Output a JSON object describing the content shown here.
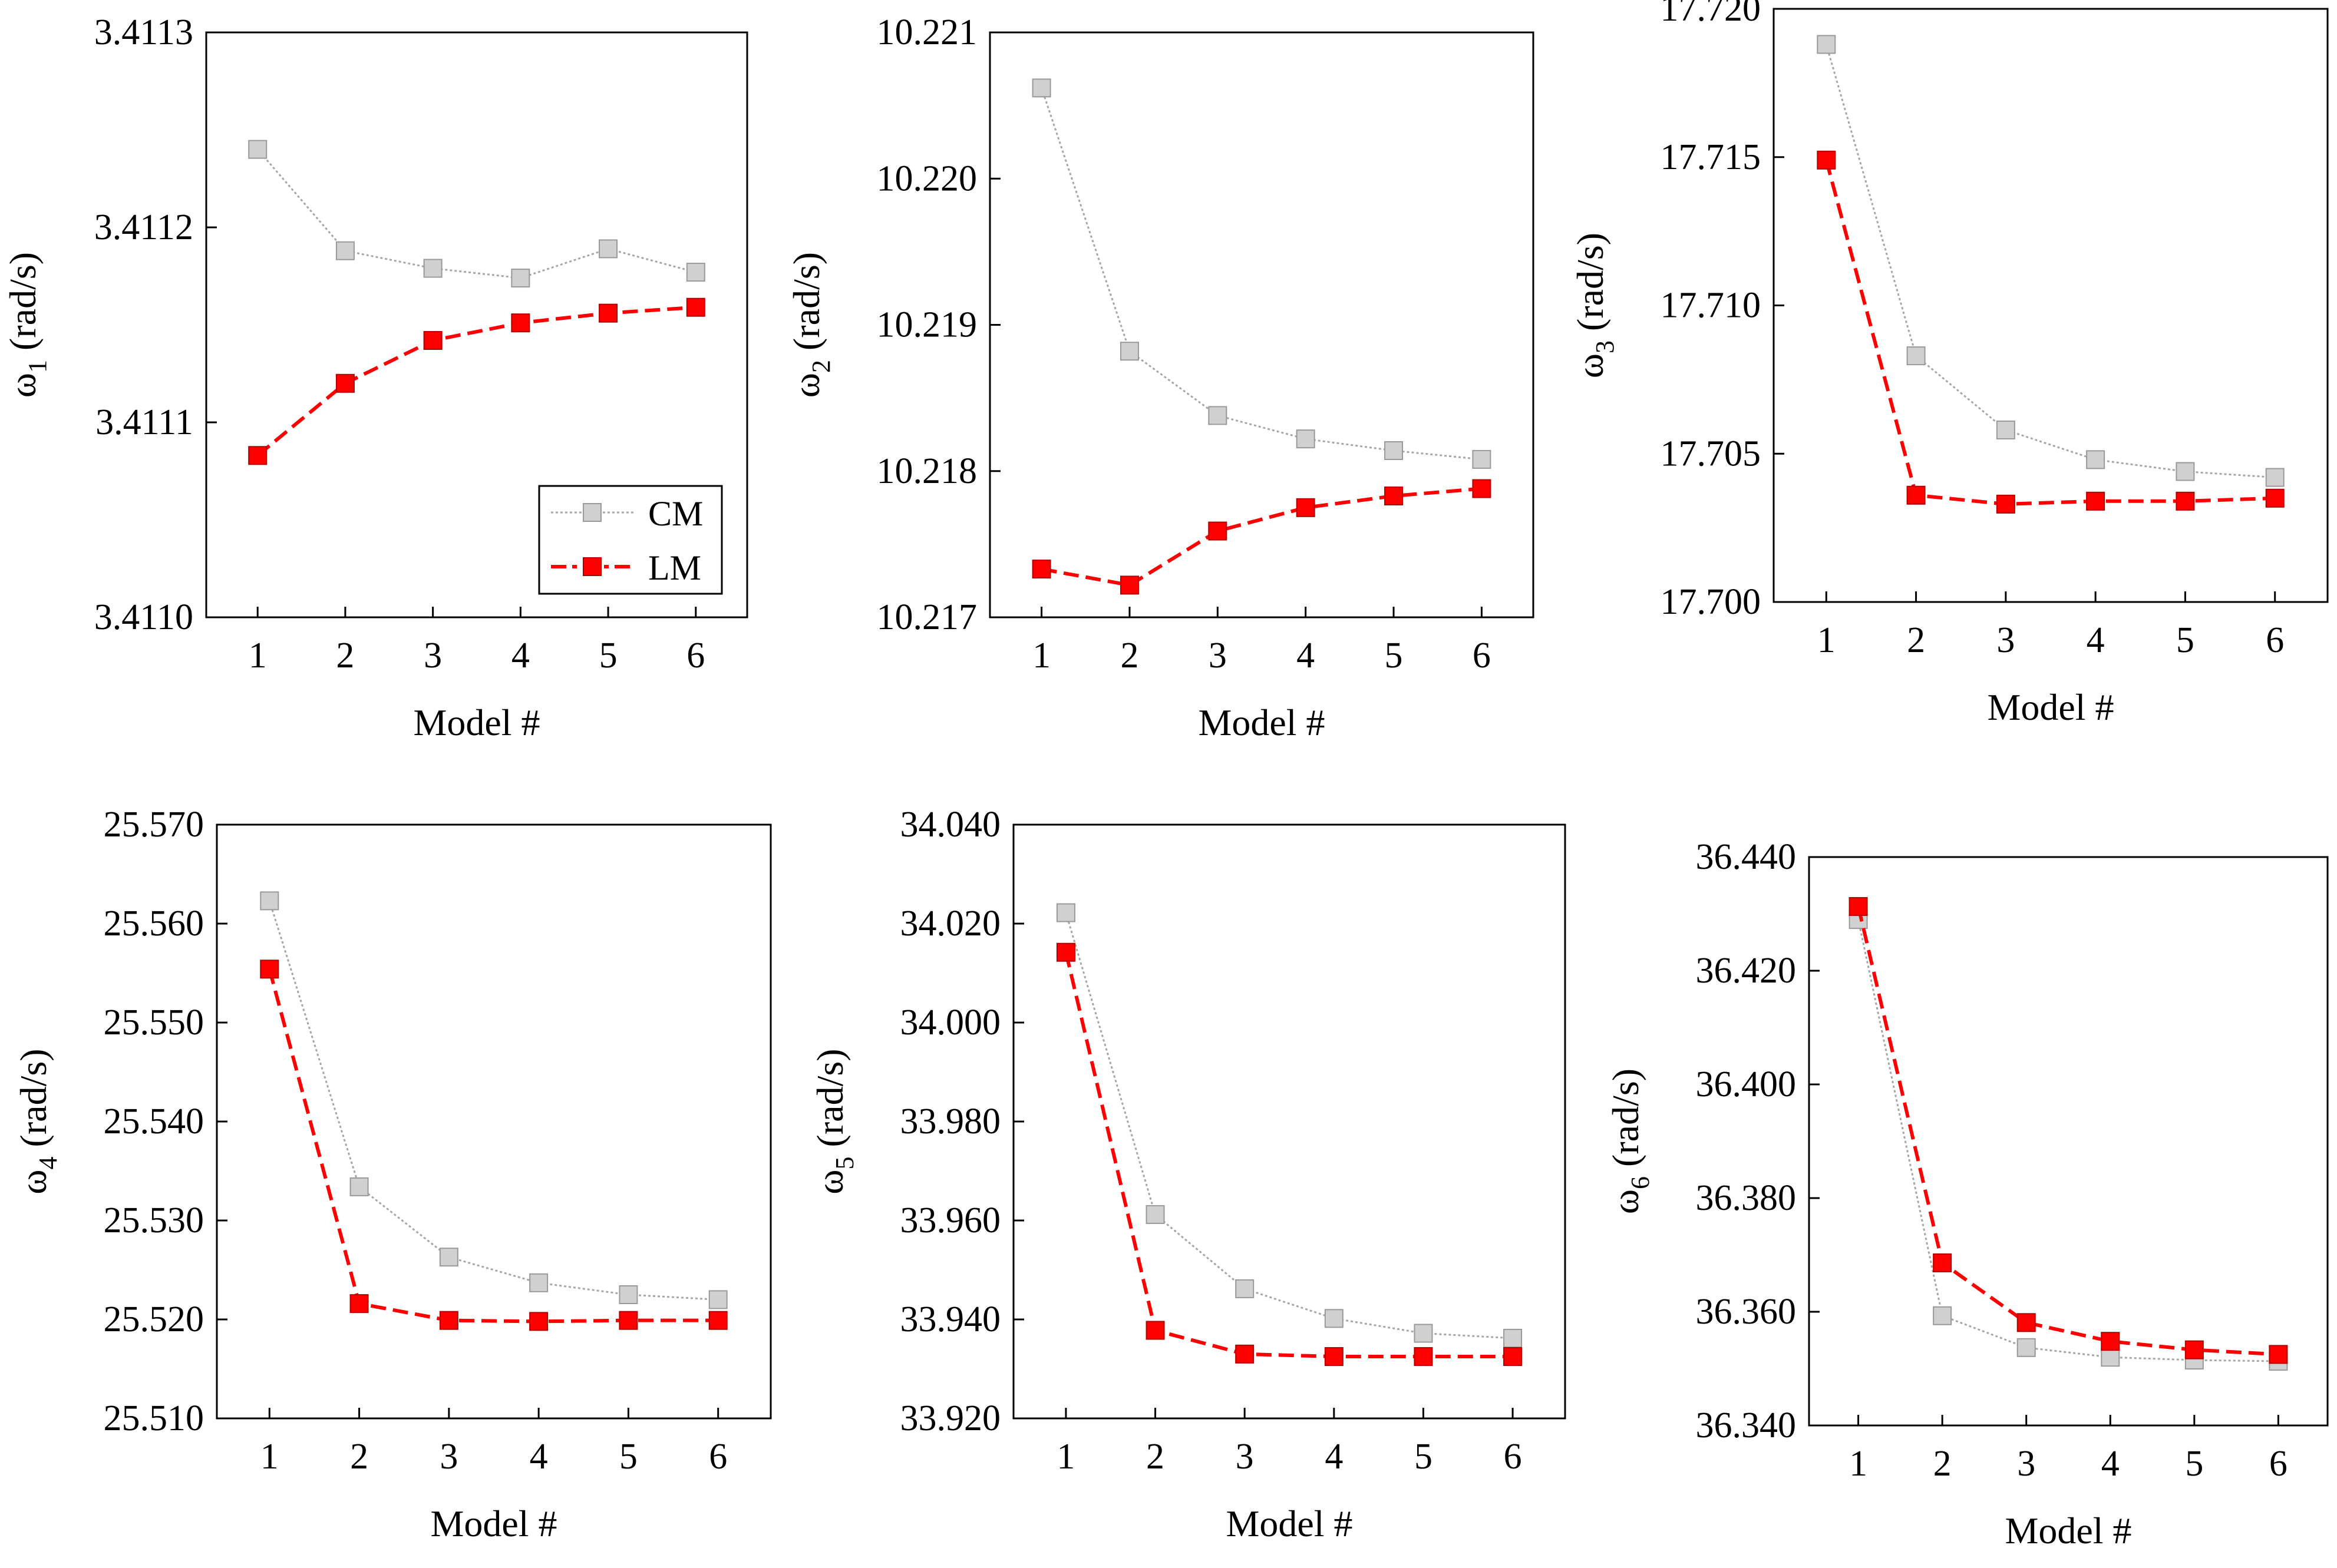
{
  "figure": {
    "legend": {
      "cm_label": "CM",
      "lm_label": "LM"
    },
    "colors": {
      "cm": "#a6a6a6",
      "lm": "#ff0000",
      "lm_edge": "#b30000",
      "axis": "#000000"
    }
  },
  "chart_data": [
    {
      "type": "line",
      "title": "",
      "xlabel": "Model #",
      "ylabel": {
        "symbol": "ω",
        "sub": "1",
        "unit": " (rad/s)"
      },
      "categories": [
        "1",
        "2",
        "3",
        "4",
        "5",
        "6"
      ],
      "ylim": [
        3.411,
        3.4113
      ],
      "yticks": [
        "3.4110",
        "3.4111",
        "3.4112",
        "3.4113"
      ],
      "legend": "bottom-right",
      "series": [
        {
          "name": "CM",
          "values": [
            3.41124,
            3.411188,
            3.411179,
            3.411174,
            3.411189,
            3.411177
          ]
        },
        {
          "name": "LM",
          "values": [
            3.411083,
            3.41112,
            3.411142,
            3.411151,
            3.411156,
            3.411159
          ]
        }
      ]
    },
    {
      "type": "line",
      "title": "",
      "xlabel": "Model #",
      "ylabel": {
        "symbol": "ω",
        "sub": "2",
        "unit": " (rad/s)"
      },
      "categories": [
        "1",
        "2",
        "3",
        "4",
        "5",
        "6"
      ],
      "ylim": [
        10.217,
        10.221
      ],
      "yticks": [
        "10.217",
        "10.218",
        "10.219",
        "10.220",
        "10.221"
      ],
      "series": [
        {
          "name": "CM",
          "values": [
            10.22062,
            10.21882,
            10.21838,
            10.21822,
            10.21814,
            10.21808
          ]
        },
        {
          "name": "LM",
          "values": [
            10.21733,
            10.21722,
            10.21759,
            10.21775,
            10.21783,
            10.21788
          ]
        }
      ]
    },
    {
      "type": "line",
      "title": "",
      "xlabel": "Model #",
      "ylabel": {
        "symbol": "ω",
        "sub": "3",
        "unit": " (rad/s)"
      },
      "categories": [
        "1",
        "2",
        "3",
        "4",
        "5",
        "6"
      ],
      "ylim": [
        17.7,
        17.72
      ],
      "yticks": [
        "17.700",
        "17.705",
        "17.710",
        "17.715",
        "17.720"
      ],
      "series": [
        {
          "name": "CM",
          "values": [
            17.7188,
            17.7083,
            17.7058,
            17.7048,
            17.7044,
            17.7042
          ]
        },
        {
          "name": "LM",
          "values": [
            17.7149,
            17.7036,
            17.7033,
            17.7034,
            17.7034,
            17.7035
          ]
        }
      ]
    },
    {
      "type": "line",
      "title": "",
      "xlabel": "Model #",
      "ylabel": {
        "symbol": "ω",
        "sub": "4",
        "unit": " (rad/s)"
      },
      "categories": [
        "1",
        "2",
        "3",
        "4",
        "5",
        "6"
      ],
      "ylim": [
        25.51,
        25.57
      ],
      "yticks": [
        "25.510",
        "25.520",
        "25.530",
        "25.540",
        "25.550",
        "25.560",
        "25.570"
      ],
      "series": [
        {
          "name": "CM",
          "values": [
            25.5623,
            25.5334,
            25.5263,
            25.5237,
            25.5225,
            25.522
          ]
        },
        {
          "name": "LM",
          "values": [
            25.5554,
            25.5216,
            25.5199,
            25.5198,
            25.5199,
            25.5199
          ]
        }
      ]
    },
    {
      "type": "line",
      "title": "",
      "xlabel": "Model #",
      "ylabel": {
        "symbol": "ω",
        "sub": "5",
        "unit": " (rad/s)"
      },
      "categories": [
        "1",
        "2",
        "3",
        "4",
        "5",
        "6"
      ],
      "ylim": [
        33.92,
        34.04
      ],
      "yticks": [
        "33.920",
        "33.940",
        "33.960",
        "33.980",
        "34.000",
        "34.020",
        "34.040"
      ],
      "series": [
        {
          "name": "CM",
          "values": [
            34.0222,
            33.9612,
            33.9462,
            33.9402,
            33.9372,
            33.9362
          ]
        },
        {
          "name": "LM",
          "values": [
            34.0142,
            33.9378,
            33.933,
            33.9325,
            33.9325,
            33.9325
          ]
        }
      ]
    },
    {
      "type": "line",
      "title": "",
      "xlabel": "Model #",
      "ylabel": {
        "symbol": "ω",
        "sub": "6",
        "unit": " (rad/s)"
      },
      "categories": [
        "1",
        "2",
        "3",
        "4",
        "5",
        "6"
      ],
      "ylim": [
        36.34,
        36.44
      ],
      "yticks": [
        "36.340",
        "36.360",
        "36.380",
        "36.400",
        "36.420",
        "36.440"
      ],
      "series": [
        {
          "name": "CM",
          "values": [
            36.429,
            36.3593,
            36.3537,
            36.352,
            36.3515,
            36.3513
          ]
        },
        {
          "name": "LM",
          "values": [
            36.4313,
            36.3686,
            36.3581,
            36.3548,
            36.3533,
            36.3525
          ]
        }
      ]
    }
  ]
}
